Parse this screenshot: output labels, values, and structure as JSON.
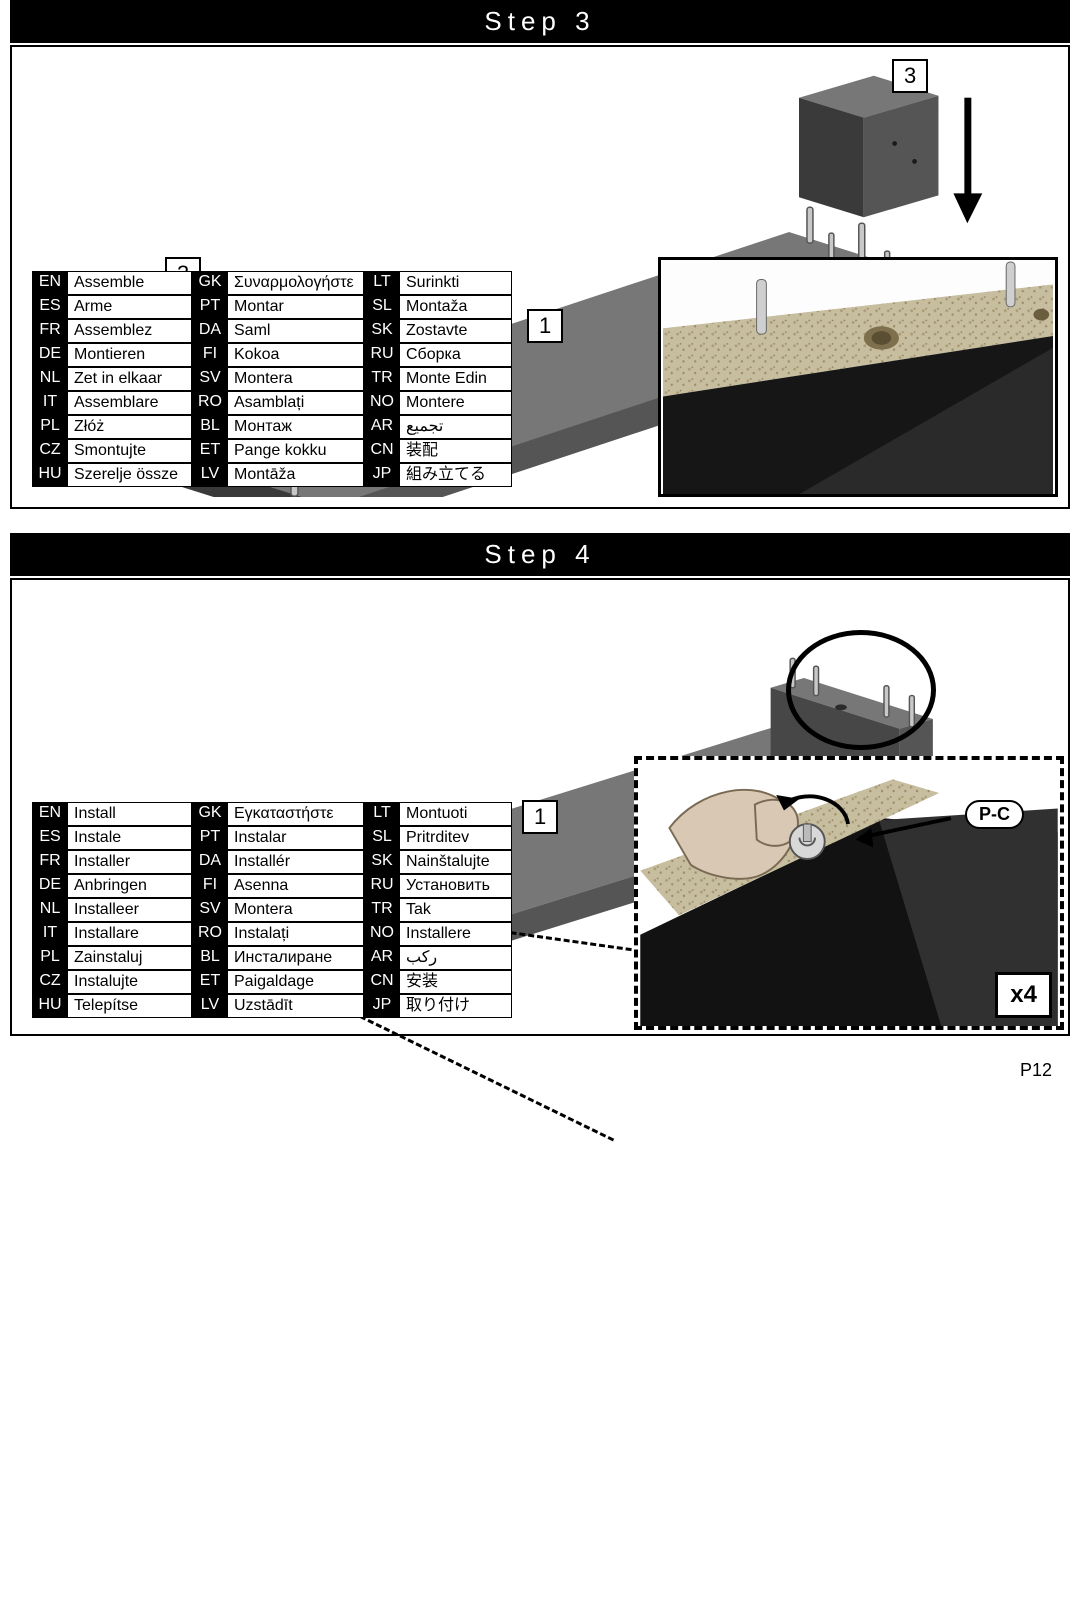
{
  "step3": {
    "title": "Step 3",
    "labels": {
      "left_block": "3",
      "right_block": "3",
      "base": "1"
    },
    "langs": {
      "col1": [
        [
          "EN",
          "Assemble"
        ],
        [
          "ES",
          "Arme"
        ],
        [
          "FR",
          "Assemblez"
        ],
        [
          "DE",
          "Montieren"
        ],
        [
          "NL",
          "Zet in elkaar"
        ],
        [
          "IT",
          "Assemblare"
        ],
        [
          "PL",
          "Złóż"
        ],
        [
          "CZ",
          "Smontujte"
        ],
        [
          "HU",
          "Szerelje össze"
        ]
      ],
      "col2": [
        [
          "GK",
          "Συναρμολογήστε"
        ],
        [
          "PT",
          "Montar"
        ],
        [
          "DA",
          "Saml"
        ],
        [
          "FI",
          "Kokoa"
        ],
        [
          "SV",
          "Montera"
        ],
        [
          "RO",
          "Asamblați"
        ],
        [
          "BL",
          "Монтаж"
        ],
        [
          "ET",
          "Pange kokku"
        ],
        [
          "LV",
          "Montāža"
        ]
      ],
      "col3": [
        [
          "LT",
          "Surinkti"
        ],
        [
          "SL",
          "Montaža"
        ],
        [
          "SK",
          "Zostavte"
        ],
        [
          "RU",
          "Сборка"
        ],
        [
          "TR",
          "Monte Edin"
        ],
        [
          "NO",
          "Montere"
        ],
        [
          "AR",
          "تجميع"
        ],
        [
          "CN",
          "装配"
        ],
        [
          "JP",
          "組み立てる"
        ]
      ]
    }
  },
  "step4": {
    "title": "Step 4",
    "labels": {
      "base": "1",
      "part": "P-C",
      "qty": "x4"
    },
    "langs": {
      "col1": [
        [
          "EN",
          "Install"
        ],
        [
          "ES",
          "Instale"
        ],
        [
          "FR",
          "Installer"
        ],
        [
          "DE",
          "Anbringen"
        ],
        [
          "NL",
          "Installeer"
        ],
        [
          "IT",
          "Installare"
        ],
        [
          "PL",
          "Zainstaluj"
        ],
        [
          "CZ",
          "Instalujte"
        ],
        [
          "HU",
          "Telepítse"
        ]
      ],
      "col2": [
        [
          "GK",
          "Εγκαταστήστε"
        ],
        [
          "PT",
          "Instalar"
        ],
        [
          "DA",
          "Installér"
        ],
        [
          "FI",
          "Asenna"
        ],
        [
          "SV",
          "Montera"
        ],
        [
          "RO",
          "Instalați"
        ],
        [
          "BL",
          "Инсталиране"
        ],
        [
          "ET",
          "Paigaldage"
        ],
        [
          "LV",
          "Uzstādīt"
        ]
      ],
      "col3": [
        [
          "LT",
          "Montuoti"
        ],
        [
          "SL",
          "Pritrditev"
        ],
        [
          "SK",
          "Nainštalujte"
        ],
        [
          "RU",
          "Установить"
        ],
        [
          "TR",
          "Tak"
        ],
        [
          "NO",
          "Installere"
        ],
        [
          "AR",
          "ركب"
        ],
        [
          "CN",
          "安装"
        ],
        [
          "JP",
          "取り付け"
        ]
      ]
    }
  },
  "page": "P12",
  "colors": {
    "top": "#777777",
    "dark": "#3a3a3a",
    "mid": "#555555",
    "chip_a": "#b8ac8e",
    "chip_b": "#cfc6aa"
  }
}
